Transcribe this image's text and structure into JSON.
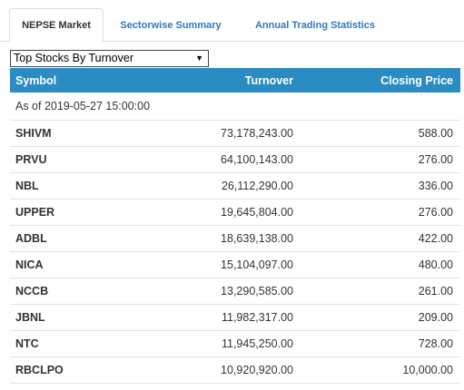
{
  "tabs": [
    {
      "label": "NEPSE Market",
      "active": true
    },
    {
      "label": "Sectorwise Summary",
      "active": false
    },
    {
      "label": "Annual Trading Statistics",
      "active": false
    }
  ],
  "selector": {
    "value": "Top Stocks By Turnover"
  },
  "table": {
    "headers": {
      "symbol": "Symbol",
      "turnover": "Turnover",
      "closing": "Closing Price"
    },
    "as_of": "As of 2019-05-27 15:00:00",
    "rows": [
      {
        "symbol": "SHIVM",
        "turnover": "73,178,243.00",
        "closing": "588.00"
      },
      {
        "symbol": "PRVU",
        "turnover": "64,100,143.00",
        "closing": "276.00"
      },
      {
        "symbol": "NBL",
        "turnover": "26,112,290.00",
        "closing": "336.00"
      },
      {
        "symbol": "UPPER",
        "turnover": "19,645,804.00",
        "closing": "276.00"
      },
      {
        "symbol": "ADBL",
        "turnover": "18,639,138.00",
        "closing": "422.00"
      },
      {
        "symbol": "NICA",
        "turnover": "15,104,097.00",
        "closing": "480.00"
      },
      {
        "symbol": "NCCB",
        "turnover": "13,290,585.00",
        "closing": "261.00"
      },
      {
        "symbol": "JBNL",
        "turnover": "11,982,317.00",
        "closing": "209.00"
      },
      {
        "symbol": "NTC",
        "turnover": "11,945,250.00",
        "closing": "728.00"
      },
      {
        "symbol": "RBCLPO",
        "turnover": "10,920,920.00",
        "closing": "10,000.00"
      }
    ]
  },
  "colors": {
    "accent": "#2b8cc4",
    "link": "#2b7bbf"
  }
}
